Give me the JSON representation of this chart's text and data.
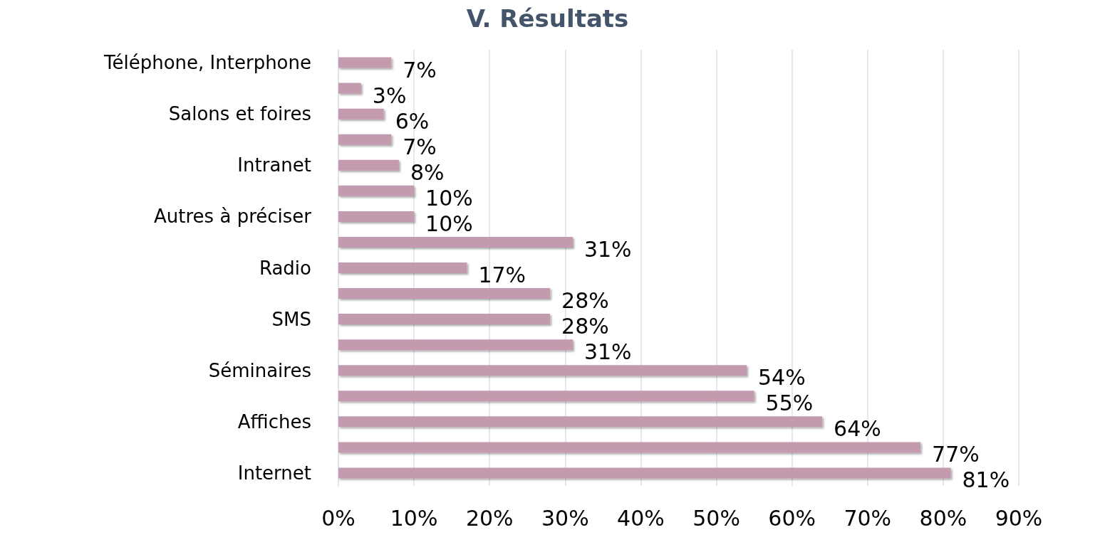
{
  "chart_data": {
    "type": "bar",
    "orientation": "horizontal",
    "title": "V. Résultats",
    "categories": [
      "Téléphone, Interphone",
      null,
      "Salons et foires",
      null,
      "Intranet",
      null,
      "Autres à préciser",
      null,
      "Radio",
      null,
      "SMS",
      null,
      "Séminaires",
      null,
      "Affiches",
      null,
      "Internet"
    ],
    "values": [
      7,
      3,
      6,
      7,
      8,
      10,
      10,
      31,
      17,
      28,
      28,
      31,
      54,
      55,
      64,
      77,
      81
    ],
    "value_labels": [
      "7%",
      "3%",
      "6%",
      "7%",
      "8%",
      "10%",
      "10%",
      "31%",
      "17%",
      "28%",
      "28%",
      "31%",
      "54%",
      "55%",
      "64%",
      "77%",
      "81%"
    ],
    "color": "#c49aaf",
    "xlim": [
      0,
      90
    ],
    "xticks": [
      {
        "value": 0,
        "label": "0%"
      },
      {
        "value": 10,
        "label": "10%"
      },
      {
        "value": 20,
        "label": "20%"
      },
      {
        "value": 30,
        "label": "30%"
      },
      {
        "value": 40,
        "label": "40%"
      },
      {
        "value": 50,
        "label": "50%"
      },
      {
        "value": 60,
        "label": "60%"
      },
      {
        "value": 70,
        "label": "70%"
      },
      {
        "value": 80,
        "label": "80%"
      },
      {
        "value": 90,
        "label": "90%"
      }
    ],
    "grid": "x"
  }
}
